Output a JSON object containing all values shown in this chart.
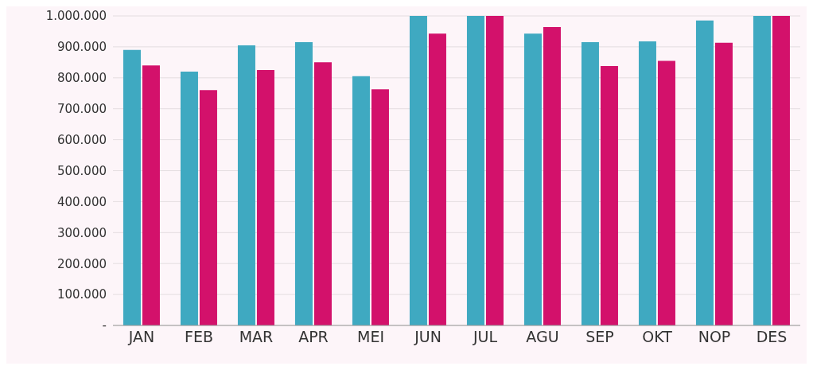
{
  "chart_data": {
    "type": "bar",
    "categories": [
      "JAN",
      "FEB",
      "MAR",
      "APR",
      "MEI",
      "JUN",
      "JUL",
      "AGU",
      "SEP",
      "OKT",
      "NOP",
      "DES"
    ],
    "series": [
      {
        "color": "#3fa9c1",
        "values": [
          890000,
          820000,
          905000,
          915000,
          805000,
          1000000,
          1000000,
          943000,
          915000,
          918000,
          985000,
          1000000
        ]
      },
      {
        "color": "#d3116b",
        "values": [
          840000,
          760000,
          825000,
          850000,
          763000,
          943000,
          1000000,
          964000,
          838000,
          855000,
          913000,
          1000000
        ]
      }
    ],
    "ylim": [
      0,
      1000000
    ],
    "yticks": [
      {
        "value": 0,
        "label": "-"
      },
      {
        "value": 100000,
        "label": "100.000"
      },
      {
        "value": 200000,
        "label": "200.000"
      },
      {
        "value": 300000,
        "label": "300.000"
      },
      {
        "value": 400000,
        "label": "400.000"
      },
      {
        "value": 500000,
        "label": "500.000"
      },
      {
        "value": 600000,
        "label": "600.000"
      },
      {
        "value": 700000,
        "label": "700.000"
      },
      {
        "value": 800000,
        "label": "800.000"
      },
      {
        "value": 900000,
        "label": "900.000"
      },
      {
        "value": 1000000,
        "label": "1.000.000"
      }
    ],
    "grid": "y"
  }
}
